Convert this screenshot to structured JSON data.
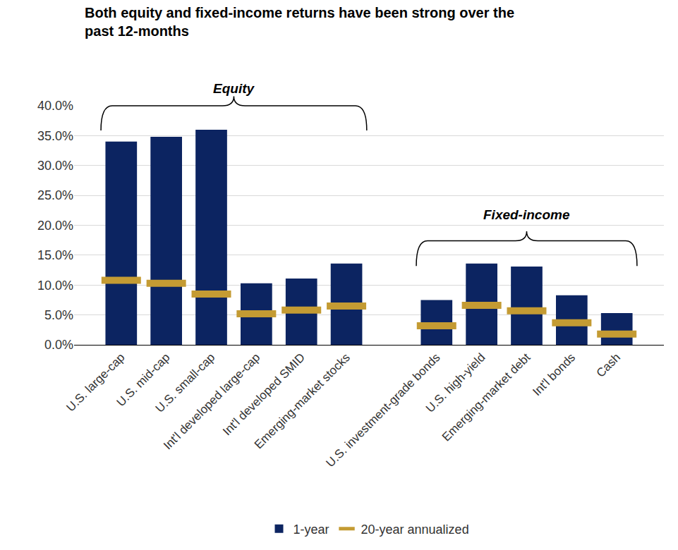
{
  "chart_data": {
    "type": "bar",
    "title": "Both equity and fixed-income returns have been strong over the\npast 12-months",
    "categories": [
      "U.S. large-cap",
      "U.S. mid-cap",
      "U.S. small-cap",
      "Int'l developed large-cap",
      "Int'l developed SMID",
      "Emerging-market stocks",
      null,
      "U.S. investment-grade bonds",
      "U.S. high-yield",
      "Emerging-market debt",
      "Int'l bonds",
      "Cash"
    ],
    "series": [
      {
        "name": "1-year",
        "type": "bar",
        "color": "#0c2461",
        "values": [
          34.0,
          34.8,
          36.0,
          10.3,
          11.1,
          13.6,
          null,
          7.5,
          13.6,
          13.1,
          8.3,
          5.3
        ]
      },
      {
        "name": "20-year annualized",
        "type": "scatter",
        "marker": "dash",
        "color": "#c49b33",
        "values": [
          10.8,
          10.3,
          8.5,
          5.2,
          5.8,
          6.5,
          null,
          3.2,
          6.6,
          5.7,
          3.7,
          1.8
        ]
      }
    ],
    "ylim": [
      0,
      40
    ],
    "yticks": [
      {
        "value": 0,
        "label": "0.0%"
      },
      {
        "value": 5,
        "label": "5.0%"
      },
      {
        "value": 10,
        "label": "10.0%"
      },
      {
        "value": 15,
        "label": "15.0%"
      },
      {
        "value": 20,
        "label": "20.0%"
      },
      {
        "value": 25,
        "label": "25.0%"
      },
      {
        "value": 30,
        "label": "30.0%"
      },
      {
        "value": 35,
        "label": "35.0%"
      },
      {
        "value": 40,
        "label": "40.0%"
      }
    ],
    "grid": true,
    "legend": "bottom",
    "annotations": [
      {
        "text": "Equity",
        "categories": [
          "U.S. large-cap",
          "Emerging-market stocks"
        ]
      },
      {
        "text": "Fixed-income",
        "categories": [
          "U.S. investment-grade bonds",
          "Cash"
        ]
      }
    ]
  }
}
